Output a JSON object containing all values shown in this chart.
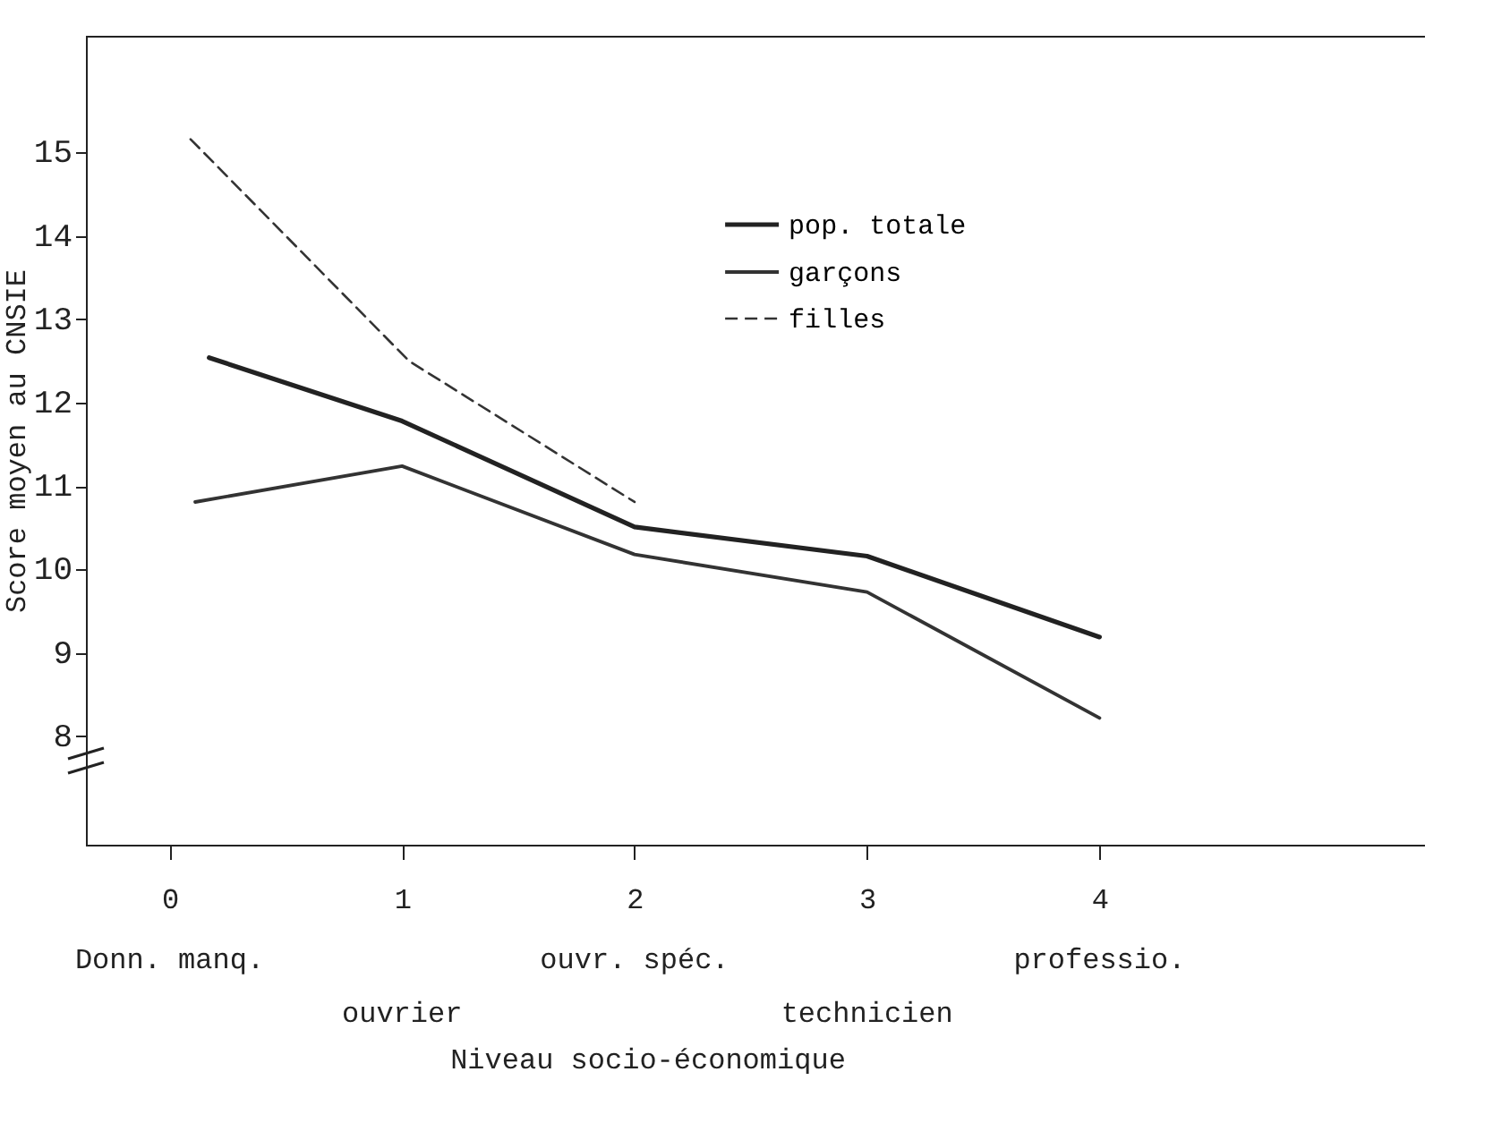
{
  "chart_data": {
    "type": "line",
    "xlabel": "Niveau socio-économique",
    "ylabel": "Score moyen au CNSIE",
    "xlim": [
      -0.36,
      5.4
    ],
    "ylim": [
      6.7,
      16.4
    ],
    "xticks": [
      0,
      1,
      2,
      3,
      4
    ],
    "yticks": [
      8,
      9,
      10,
      11,
      12,
      13,
      14,
      15
    ],
    "grid": false,
    "legend": "top right",
    "annotations": [
      "Donn. manq.",
      "ouvrier",
      "ouvr. spéc.",
      "technicien",
      "professio."
    ],
    "series": [
      {
        "name": "pop. totale",
        "color": "#222222",
        "line_style": "solid",
        "x": [
          0.17,
          1,
          2,
          3,
          4
        ],
        "values": [
          12.54,
          11.78,
          10.51,
          10.16,
          9.19
        ]
      },
      {
        "name": "garçons",
        "color": "#333333",
        "line_style": "solid",
        "x": [
          0.11,
          1,
          2,
          3,
          4
        ],
        "values": [
          10.81,
          11.24,
          10.18,
          9.73,
          8.22
        ]
      },
      {
        "name": "filles",
        "color": "#333333",
        "line_style": "dashed",
        "x": [
          0.09,
          1.03,
          2
        ],
        "values": [
          15.16,
          12.5,
          10.81
        ]
      }
    ]
  }
}
